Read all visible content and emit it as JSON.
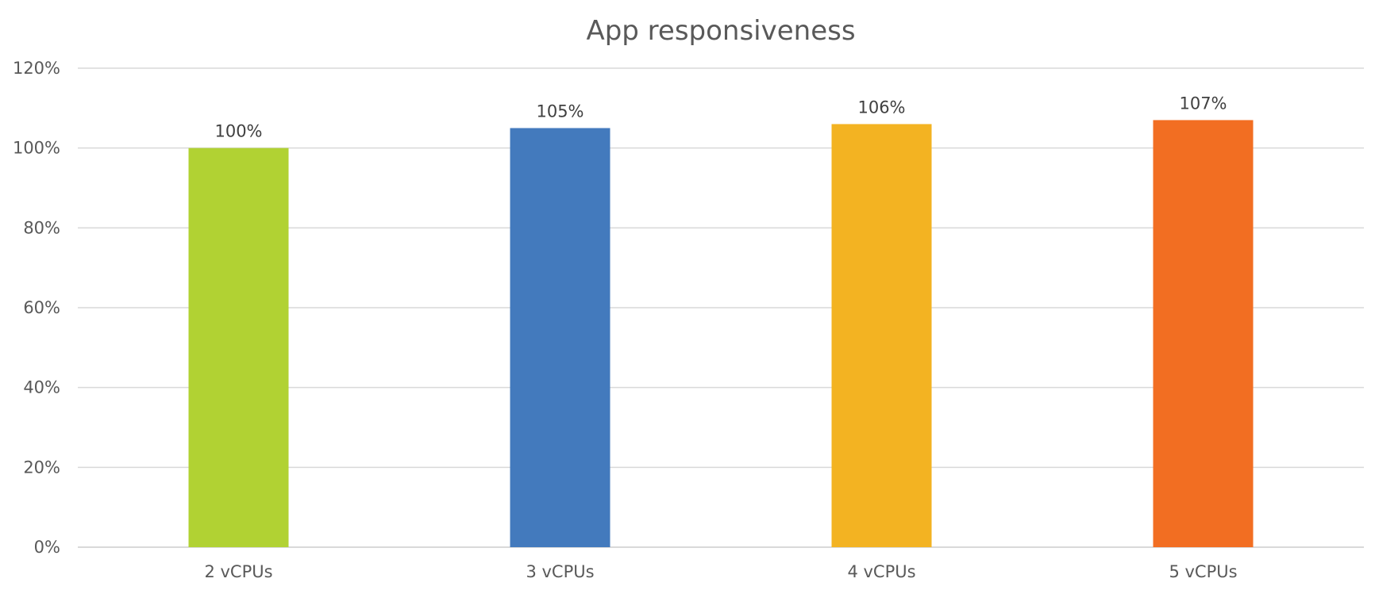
{
  "chart_data": {
    "type": "bar",
    "title": "App responsiveness",
    "xlabel": "",
    "ylabel": "",
    "categories": [
      "2 vCPUs",
      "3 vCPUs",
      "4 vCPUs",
      "5 vCPUs"
    ],
    "values": [
      100,
      105,
      106,
      107
    ],
    "data_labels": [
      "100%",
      "105%",
      "106%",
      "107%"
    ],
    "bar_colors": [
      "#b1d233",
      "#437abd",
      "#f3b322",
      "#f26e22"
    ],
    "ylim": [
      0,
      120
    ],
    "yticks": [
      0,
      20,
      40,
      60,
      80,
      100,
      120
    ],
    "ytick_labels": [
      "0%",
      "20%",
      "40%",
      "60%",
      "80%",
      "100%",
      "120%"
    ],
    "grid": true,
    "legend": "none"
  }
}
